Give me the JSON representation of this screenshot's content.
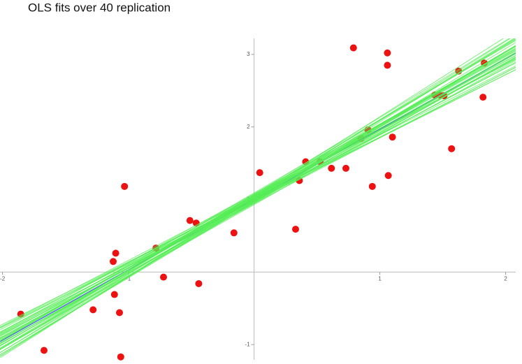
{
  "chart_data": {
    "type": "scatter",
    "title": "OLS fits over 40 replication",
    "x": [
      -1.855,
      -1.67,
      -1.28,
      -1.12,
      -1.1,
      -1.11,
      -1.07,
      -1.06,
      -1.03,
      -0.78,
      -0.72,
      -0.51,
      -0.46,
      -0.44,
      -0.16,
      0.045,
      0.33,
      0.36,
      0.41,
      0.525,
      0.615,
      0.73,
      0.79,
      0.85,
      0.905,
      0.94,
      1.06,
      1.06,
      1.067,
      1.1,
      1.436,
      1.475,
      1.51,
      1.57,
      1.626,
      1.82,
      1.83
    ],
    "y": [
      -0.58,
      -1.08,
      -0.52,
      0.145,
      0.26,
      -0.31,
      -0.56,
      -1.17,
      1.18,
      0.33,
      -0.07,
      0.71,
      0.675,
      -0.16,
      0.54,
      1.37,
      0.59,
      1.26,
      1.52,
      1.52,
      1.43,
      1.43,
      3.09,
      1.84,
      1.96,
      1.18,
      3.02,
      2.85,
      1.33,
      1.86,
      2.44,
      2.44,
      2.43,
      1.7,
      2.77,
      2.41,
      2.88
    ],
    "point_color": "#ee1111",
    "fit_color": "#55ee55",
    "true_line": {
      "intercept": 1.0,
      "slope": 0.97,
      "color": "#4a6fd0"
    },
    "fits": [
      {
        "intercept": 1.02,
        "slope": 0.96
      },
      {
        "intercept": 0.98,
        "slope": 0.92
      },
      {
        "intercept": 1.05,
        "slope": 0.99
      },
      {
        "intercept": 1.0,
        "slope": 1.02
      },
      {
        "intercept": 0.95,
        "slope": 0.9
      },
      {
        "intercept": 1.08,
        "slope": 0.95
      },
      {
        "intercept": 1.03,
        "slope": 1.06
      },
      {
        "intercept": 0.97,
        "slope": 0.98
      },
      {
        "intercept": 1.01,
        "slope": 0.88
      },
      {
        "intercept": 1.06,
        "slope": 1.03
      },
      {
        "intercept": 0.99,
        "slope": 0.94
      },
      {
        "intercept": 1.04,
        "slope": 0.91
      },
      {
        "intercept": 0.96,
        "slope": 1.04
      },
      {
        "intercept": 1.02,
        "slope": 1.08
      },
      {
        "intercept": 1.07,
        "slope": 0.97
      },
      {
        "intercept": 0.94,
        "slope": 0.95
      },
      {
        "intercept": 1.0,
        "slope": 0.86
      },
      {
        "intercept": 1.03,
        "slope": 1.0
      },
      {
        "intercept": 0.98,
        "slope": 1.05
      },
      {
        "intercept": 1.05,
        "slope": 0.93
      },
      {
        "intercept": 1.01,
        "slope": 0.99
      },
      {
        "intercept": 0.97,
        "slope": 0.89
      },
      {
        "intercept": 1.09,
        "slope": 1.01
      },
      {
        "intercept": 0.95,
        "slope": 1.0
      },
      {
        "intercept": 1.02,
        "slope": 0.93
      },
      {
        "intercept": 1.04,
        "slope": 1.1
      },
      {
        "intercept": 0.99,
        "slope": 1.02
      },
      {
        "intercept": 1.06,
        "slope": 0.9
      },
      {
        "intercept": 0.96,
        "slope": 0.96
      },
      {
        "intercept": 1.03,
        "slope": 0.97
      },
      {
        "intercept": 1.0,
        "slope": 1.07
      },
      {
        "intercept": 0.98,
        "slope": 0.87
      },
      {
        "intercept": 1.05,
        "slope": 1.04
      },
      {
        "intercept": 0.93,
        "slope": 0.98
      },
      {
        "intercept": 1.01,
        "slope": 0.95
      },
      {
        "intercept": 1.07,
        "slope": 1.06
      },
      {
        "intercept": 0.99,
        "slope": 0.91
      },
      {
        "intercept": 1.04,
        "slope": 0.98
      },
      {
        "intercept": 0.97,
        "slope": 1.03
      },
      {
        "intercept": 1.02,
        "slope": 1.01
      }
    ],
    "xlim": [
      -2.02,
      2.08
    ],
    "ylim": [
      -1.21,
      3.22
    ],
    "xticks": [
      -2,
      -1,
      1,
      2
    ],
    "yticks": [
      -1,
      1,
      2,
      3
    ]
  }
}
